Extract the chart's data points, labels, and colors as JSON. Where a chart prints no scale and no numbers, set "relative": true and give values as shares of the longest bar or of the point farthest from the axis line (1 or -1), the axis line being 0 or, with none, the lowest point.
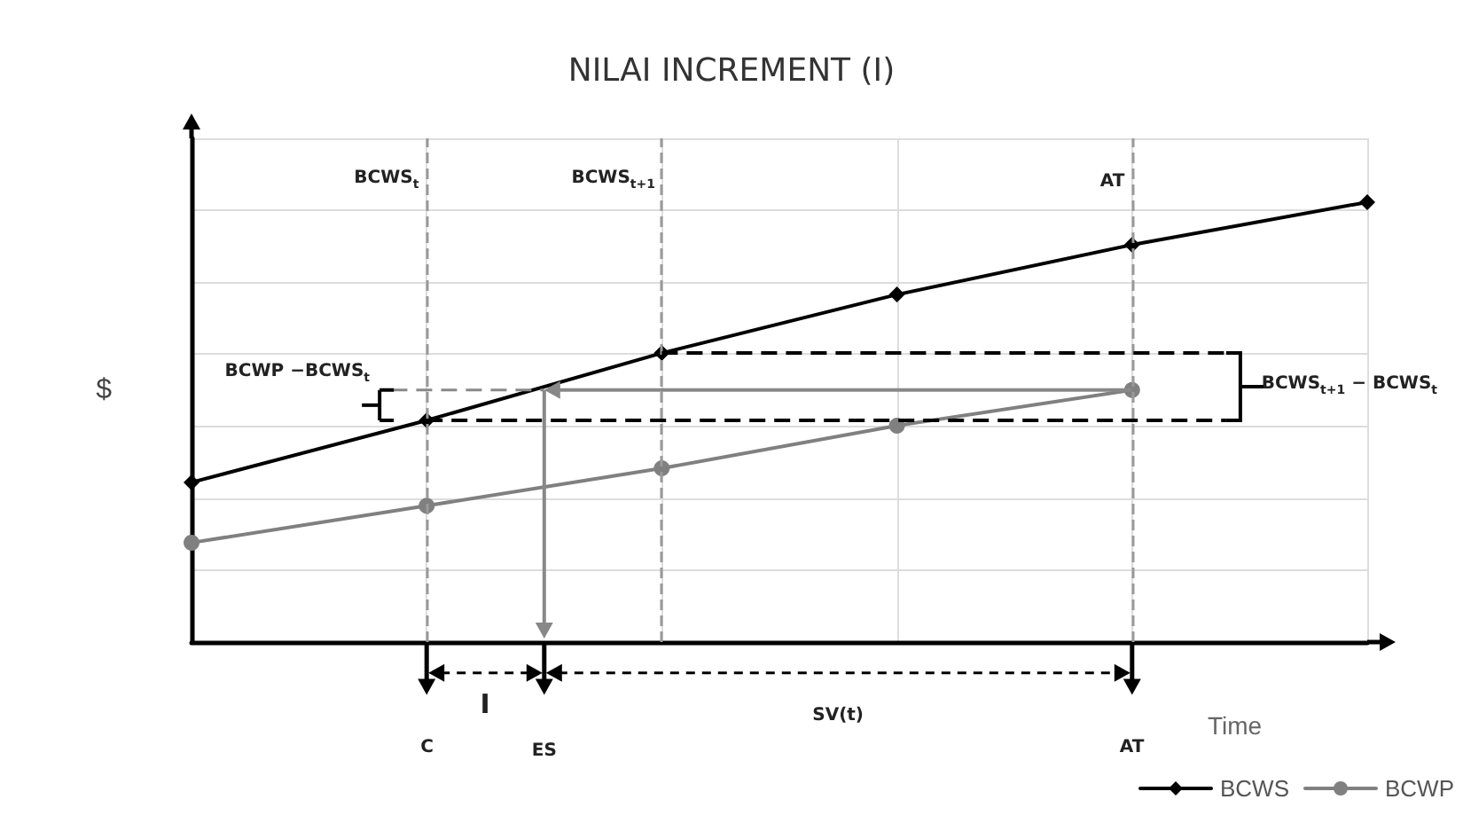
{
  "chart_data": {
    "type": "line",
    "title": "NILAI INCREMENT (I)",
    "xlabel": "Time",
    "ylabel": "$",
    "relative": true,
    "categories": [
      null,
      null,
      null,
      null,
      null,
      null
    ],
    "series": [
      {
        "name": "BCWS",
        "color": "#000000",
        "marker": "diamond",
        "values": [
          0.363,
          0.504,
          0.657,
          0.79,
          0.903,
          1
        ]
      },
      {
        "name": "BCWP",
        "color": "#808080",
        "marker": "circle",
        "values": [
          0.226,
          0.31,
          0.395,
          0.492,
          0.573,
          null
        ]
      }
    ],
    "ref_lines": [
      {
        "axis": "y",
        "value": 0.657,
        "color": "#000000",
        "line_style": "dashed"
      },
      {
        "axis": "y",
        "value": 0.504,
        "color": "#000000",
        "line_style": "dashed"
      },
      {
        "axis": "y",
        "value": 0.573,
        "color": "#888888",
        "line_style": "dashed"
      }
    ],
    "annotations": [
      "BCWP −BCWS$_{t}$",
      "BCWS$_{t+1}$ − BCWS$_{t}$",
      "I",
      "SV(t)",
      "C",
      "ES",
      "AT",
      "BCWS$_{t}$",
      "BCWS$_{t+1}$",
      "AT"
    ],
    "grid": true,
    "legend": "bottom right",
    "line_style": "solid"
  }
}
